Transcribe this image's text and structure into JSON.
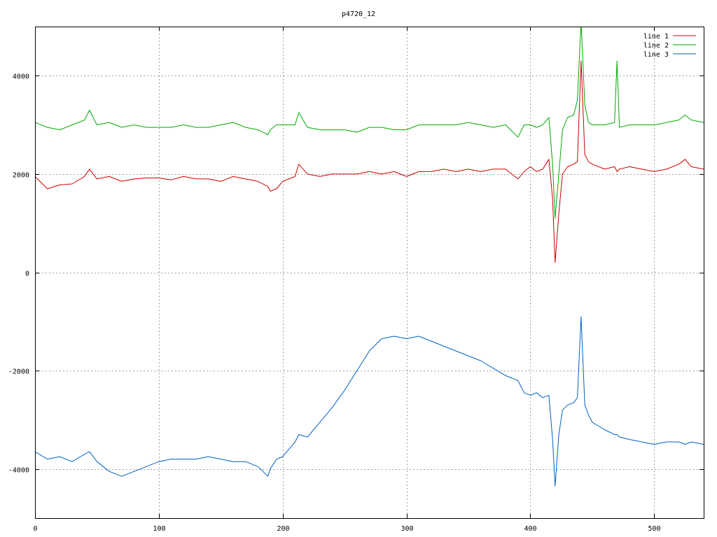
{
  "chart_data": {
    "type": "line",
    "title": "p4720_12",
    "xlabel": "",
    "ylabel": "",
    "xlim": [
      0,
      540
    ],
    "ylim": [
      -5000,
      5000
    ],
    "xticks": [
      0,
      100,
      200,
      300,
      400,
      500
    ],
    "xtick_labels": [
      "0",
      "100",
      "200",
      "300",
      "400",
      "500"
    ],
    "yticks": [
      -4000,
      -2000,
      0,
      2000,
      4000
    ],
    "ytick_labels": [
      "-4000",
      "-2000",
      "0",
      "2000",
      "4000"
    ],
    "grid": true,
    "legend": "top-right",
    "x": [
      0,
      10,
      20,
      30,
      40,
      44,
      50,
      60,
      70,
      80,
      90,
      100,
      110,
      120,
      130,
      140,
      150,
      160,
      170,
      180,
      188,
      190,
      195,
      200,
      210,
      213,
      220,
      230,
      240,
      250,
      260,
      270,
      280,
      290,
      300,
      310,
      320,
      330,
      340,
      350,
      360,
      370,
      380,
      390,
      395,
      400,
      405,
      410,
      415,
      418,
      420,
      423,
      426,
      430,
      435,
      438,
      441,
      444,
      447,
      450,
      460,
      468,
      470,
      472,
      480,
      490,
      500,
      510,
      520,
      525,
      530,
      540
    ],
    "series": [
      {
        "name": "line 1",
        "color": "#cc0000",
        "values": [
          1950,
          1700,
          1780,
          1800,
          1950,
          2100,
          1900,
          1950,
          1850,
          1900,
          1920,
          1920,
          1880,
          1950,
          1900,
          1900,
          1850,
          1950,
          1900,
          1850,
          1750,
          1650,
          1700,
          1850,
          1950,
          2200,
          2000,
          1950,
          2000,
          2000,
          2000,
          2050,
          2000,
          2050,
          1950,
          2050,
          2050,
          2100,
          2050,
          2100,
          2050,
          2100,
          2100,
          1900,
          2050,
          2150,
          2050,
          2100,
          2300,
          1500,
          200,
          1200,
          2000,
          2150,
          2200,
          2250,
          4300,
          2400,
          2250,
          2200,
          2100,
          2150,
          2050,
          2100,
          2150,
          2100,
          2050,
          2100,
          2200,
          2300,
          2150,
          2100
        ]
      },
      {
        "name": "line 2",
        "color": "#00aa00",
        "values": [
          3050,
          2950,
          2900,
          3000,
          3100,
          3300,
          3000,
          3050,
          2950,
          3000,
          2950,
          2950,
          2950,
          3000,
          2950,
          2950,
          3000,
          3050,
          2950,
          2900,
          2800,
          2900,
          3000,
          3000,
          3000,
          3250,
          2950,
          2900,
          2900,
          2900,
          2850,
          2950,
          2950,
          2900,
          2900,
          3000,
          3000,
          3000,
          3000,
          3050,
          3000,
          2950,
          3000,
          2750,
          3000,
          3000,
          2950,
          3000,
          3150,
          2200,
          1100,
          2000,
          2900,
          3150,
          3200,
          3500,
          5100,
          3400,
          3050,
          3000,
          3000,
          3050,
          4300,
          2950,
          3000,
          3000,
          3000,
          3050,
          3100,
          3200,
          3100,
          3050
        ]
      },
      {
        "name": "line 3",
        "color": "#0060c0",
        "values": [
          -3650,
          -3800,
          -3750,
          -3850,
          -3700,
          -3650,
          -3850,
          -4050,
          -4150,
          -4050,
          -3950,
          -3850,
          -3800,
          -3800,
          -3800,
          -3750,
          -3800,
          -3850,
          -3850,
          -3950,
          -4150,
          -4000,
          -3800,
          -3750,
          -3450,
          -3300,
          -3350,
          -3050,
          -2750,
          -2400,
          -2000,
          -1600,
          -1350,
          -1300,
          -1350,
          -1300,
          -1400,
          -1500,
          -1600,
          -1700,
          -1800,
          -1950,
          -2100,
          -2200,
          -2450,
          -2500,
          -2450,
          -2550,
          -2500,
          -3400,
          -4350,
          -3300,
          -2800,
          -2700,
          -2650,
          -2550,
          -900,
          -2700,
          -2900,
          -3050,
          -3200,
          -3300,
          -3300,
          -3350,
          -3400,
          -3450,
          -3500,
          -3450,
          -3450,
          -3500,
          -3450,
          -3500
        ]
      }
    ]
  }
}
